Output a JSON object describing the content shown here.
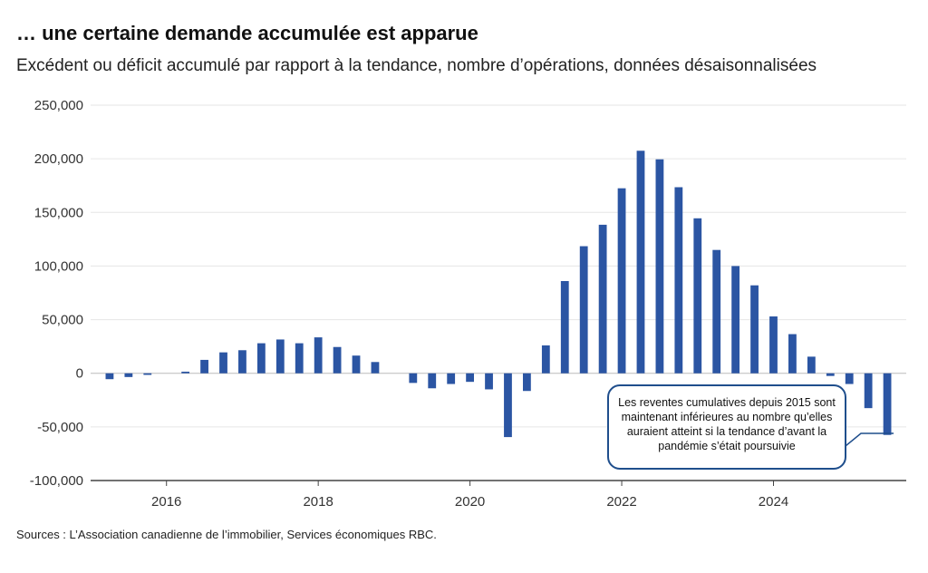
{
  "title": "… une certaine demande accumulée est apparue",
  "subtitle": "Excédent ou déficit accumulé par rapport à la tendance, nombre d’opérations, données désaisonnalisées",
  "source": "Sources : L’Association canadienne de l’immobilier, Services économiques RBC.",
  "annotation": "Les reventes cumulatives depuis 2015 sont maintenant inférieures au nombre qu’elles auraient atteint si la tendance d’avant la pandémie s’était poursuivie",
  "colors": {
    "bar": "#2b55a3",
    "grid": "#e6e6e6",
    "axis": "#444444",
    "callout_border": "#1f4e8c"
  },
  "chart_data": {
    "type": "bar",
    "title": "… une certaine demande accumulée est apparue",
    "subtitle": "Excédent ou déficit accumulé par rapport à la tendance, nombre d’opérations, données désaisonnalisées",
    "ylim": [
      -100000,
      250000
    ],
    "y_ticks": [
      250000,
      200000,
      150000,
      100000,
      50000,
      0,
      -50000,
      -100000
    ],
    "y_tick_labels": [
      "250,000",
      "200,000",
      "150,000",
      "100,000",
      "50,000",
      "0",
      "-50,000",
      "-100,000"
    ],
    "x_tick_labels": [
      "2016",
      "2018",
      "2020",
      "2022",
      "2024"
    ],
    "x_tick_values": [
      2016,
      2018,
      2020,
      2022,
      2024
    ],
    "xlim": [
      2015.0,
      2025.75
    ],
    "grid": true,
    "x": [
      2015.25,
      2015.5,
      2015.75,
      2016.0,
      2016.25,
      2016.5,
      2016.75,
      2017.0,
      2017.25,
      2017.5,
      2017.75,
      2018.0,
      2018.25,
      2018.5,
      2018.75,
      2019.0,
      2019.25,
      2019.5,
      2019.75,
      2020.0,
      2020.25,
      2020.5,
      2020.75,
      2021.0,
      2021.25,
      2021.5,
      2021.75,
      2022.0,
      2022.25,
      2022.5,
      2022.75,
      2023.0,
      2023.25,
      2023.5,
      2023.75,
      2024.0,
      2024.25,
      2024.5,
      2024.75,
      2025.0,
      2025.25,
      2025.5
    ],
    "values": [
      -5500,
      -3500,
      -1500,
      0,
      1500,
      12500,
      19500,
      21500,
      28000,
      31500,
      28000,
      33500,
      24500,
      16500,
      10500,
      0,
      -9000,
      -14000,
      -10000,
      -8000,
      -15000,
      -59500,
      -16500,
      26000,
      86000,
      118500,
      138500,
      172500,
      207500,
      199500,
      173500,
      144500,
      115000,
      100000,
      82000,
      53000,
      36500,
      15500,
      -2500,
      -10000,
      -32500,
      -57500
    ]
  }
}
